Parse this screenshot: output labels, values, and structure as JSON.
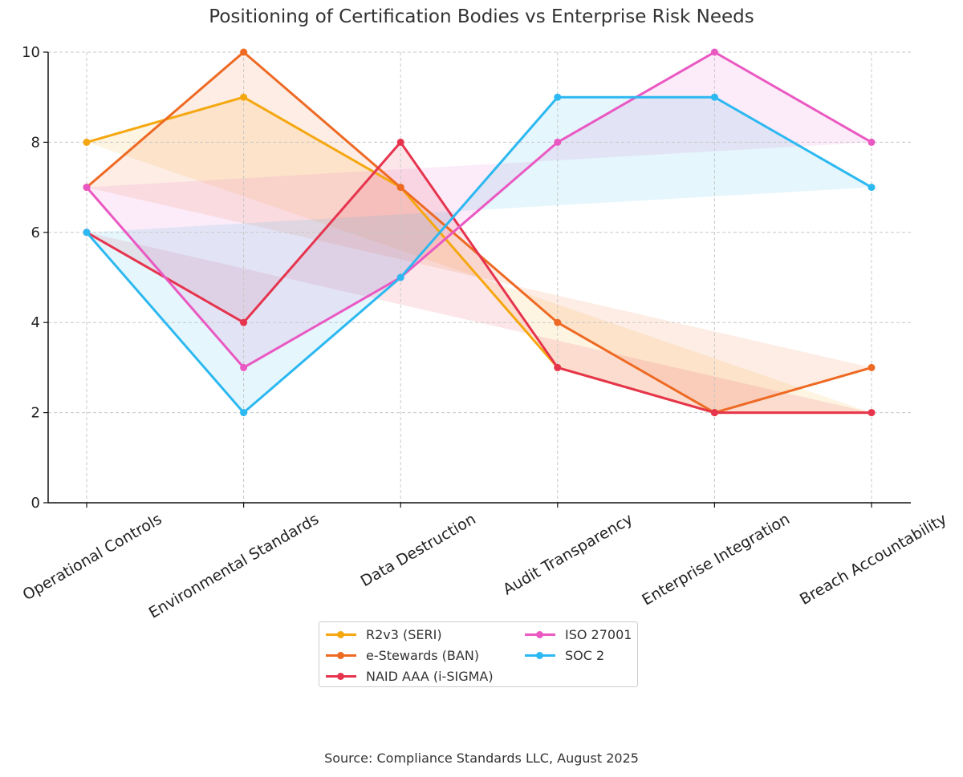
{
  "chart_data": {
    "type": "line",
    "title": "Positioning of Certification Bodies vs Enterprise Risk Needs",
    "categories": [
      "Operational Controls",
      "Environmental Standards",
      "Data Destruction",
      "Audit Transparency",
      "Enterprise Integration",
      "Breach Accountability"
    ],
    "ylim": [
      0,
      10
    ],
    "yticks": [
      "0",
      "2",
      "4",
      "6",
      "8",
      "10"
    ],
    "grid": true,
    "legend_position": "bottom-center",
    "series": [
      {
        "name": "R2v3 (SERI)",
        "color": "#F5A70F",
        "values": [
          8,
          9,
          7,
          3,
          2,
          2
        ]
      },
      {
        "name": "e-Stewards (BAN)",
        "color": "#EE6A24",
        "values": [
          7,
          10,
          7,
          4,
          2,
          3
        ]
      },
      {
        "name": "NAID AAA (i-SIGMA)",
        "color": "#E6344E",
        "values": [
          6,
          4,
          8,
          3,
          2,
          2
        ]
      },
      {
        "name": "ISO 27001",
        "color": "#EA58C2",
        "values": [
          7,
          3,
          5,
          8,
          10,
          8
        ]
      },
      {
        "name": "SOC 2",
        "color": "#2CB8F0",
        "values": [
          6,
          2,
          5,
          9,
          9,
          7
        ]
      }
    ],
    "source": "Source: Compliance Standards LLC, August 2025"
  }
}
